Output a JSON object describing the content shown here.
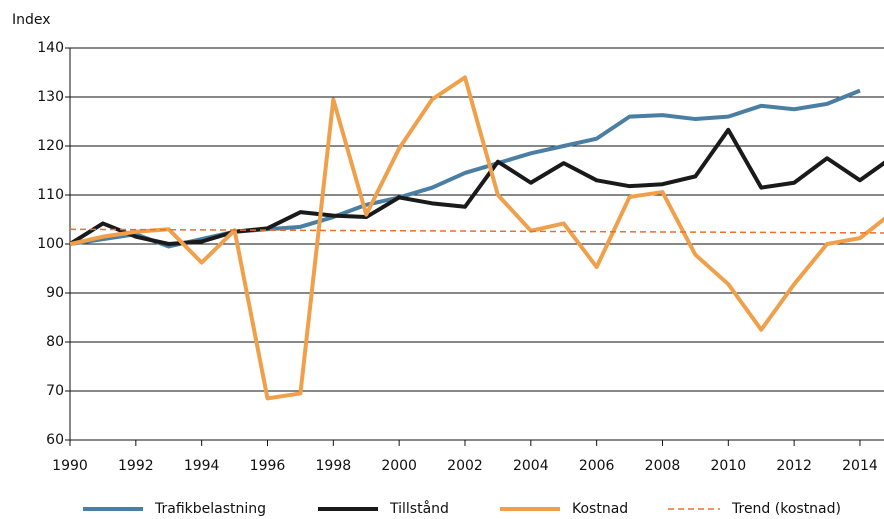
{
  "chart_data": {
    "type": "line",
    "y_label": "Index",
    "x": [
      1990,
      1991,
      1992,
      1993,
      1994,
      1995,
      1996,
      1997,
      1998,
      1999,
      2000,
      2001,
      2002,
      2003,
      2004,
      2005,
      2006,
      2007,
      2008,
      2009,
      2010,
      2011,
      2012,
      2013,
      2014,
      2015
    ],
    "series": [
      {
        "name": "Trafikbelastning",
        "color": "#4a7fa3",
        "dashed": false,
        "values": [
          100,
          101,
          102,
          99.5,
          101,
          102.5,
          103,
          103.5,
          105.5,
          108,
          109.5,
          111.5,
          114.5,
          116.5,
          118.5,
          120,
          121.5,
          126,
          126.3,
          125.5,
          126,
          128.2,
          127.5,
          128.6,
          131.3,
          null
        ]
      },
      {
        "name": "Tillstånd",
        "color": "#1a1a1a",
        "dashed": false,
        "values": [
          100,
          104.2,
          101.5,
          100,
          100.5,
          102.5,
          103.2,
          106.5,
          105.8,
          105.5,
          109.5,
          108.3,
          107.6,
          116.8,
          112.5,
          116.5,
          113,
          111.8,
          112.2,
          113.8,
          123.3,
          111.5,
          112.5,
          117.5,
          113,
          117.8
        ]
      },
      {
        "name": "Kostnad",
        "color": "#f0a04b",
        "dashed": false,
        "values": [
          100,
          101.5,
          102.5,
          103,
          96.2,
          102.8,
          68.5,
          69.5,
          129.5,
          106,
          119.5,
          129.5,
          134,
          110,
          102.7,
          104.2,
          95.3,
          109.6,
          110.6,
          97.8,
          91.8,
          82.5,
          91.8,
          100,
          101.2,
          106.5
        ]
      },
      {
        "name": "Trend (kostnad)",
        "color": "#e8722e",
        "dashed": true,
        "values": [
          103,
          102.97,
          102.94,
          102.91,
          102.88,
          102.85,
          102.82,
          102.79,
          102.76,
          102.73,
          102.7,
          102.67,
          102.64,
          102.61,
          102.58,
          102.55,
          102.52,
          102.49,
          102.46,
          102.43,
          102.4,
          102.37,
          102.34,
          102.31,
          102.28,
          102.25
        ]
      }
    ],
    "xlim": [
      1990,
      2014.73
    ],
    "xticks": [
      1990,
      1992,
      1994,
      1996,
      1998,
      2000,
      2002,
      2004,
      2006,
      2008,
      2010,
      2012,
      2014
    ],
    "ylim": [
      60,
      140
    ],
    "yticks": [
      60,
      70,
      80,
      90,
      100,
      110,
      120,
      130,
      140
    ],
    "grid": true,
    "legend": "bottom"
  }
}
